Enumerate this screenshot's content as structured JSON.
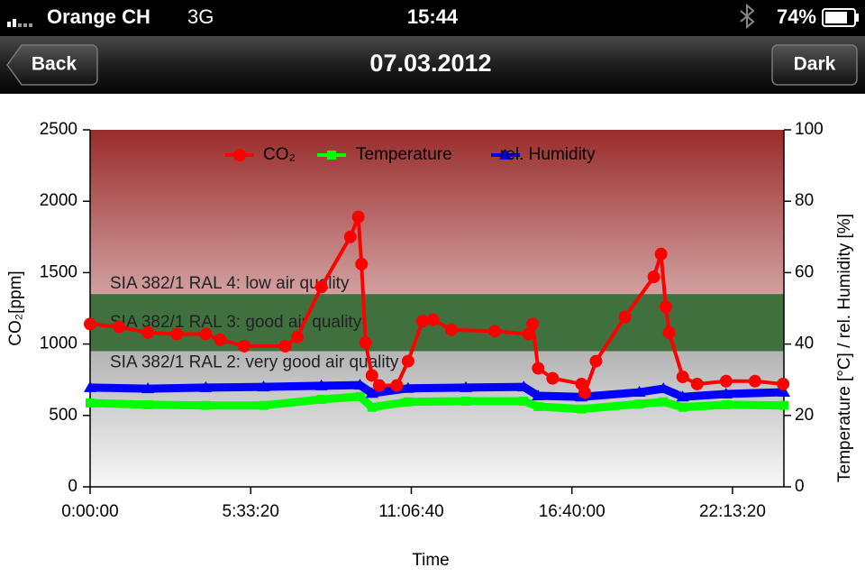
{
  "status_bar": {
    "carrier": "Orange CH",
    "network": "3G",
    "time": "15:44",
    "battery": "74%"
  },
  "nav_bar": {
    "back": "Back",
    "title": "07.03.2012",
    "right": "Dark"
  },
  "chart_data": {
    "type": "line",
    "x_label": "Time",
    "y_label": "CO₂[ppm]",
    "y2_label": "Temperature [°C] / rel. Humidity [%]",
    "xlim": [
      0,
      86400
    ],
    "xticks": [
      {
        "value": 0,
        "label": "0:00:00"
      },
      {
        "value": 20000,
        "label": "5:33:20"
      },
      {
        "value": 40000,
        "label": "11:06:40"
      },
      {
        "value": 60000,
        "label": "16:40:00"
      },
      {
        "value": 80000,
        "label": "22:13:20"
      }
    ],
    "ylim": [
      0,
      2500
    ],
    "yticks": [
      0,
      500,
      1000,
      1500,
      2000,
      2500
    ],
    "y2lim": [
      0,
      100
    ],
    "y2ticks": [
      0,
      20,
      40,
      60,
      80,
      100
    ],
    "bands": [
      {
        "label": "SIA 382/1 RAL 4: low air quality",
        "from": 1350,
        "to": 2500,
        "color": "#9a2c2c"
      },
      {
        "label": "SIA 382/1 RAL 3: good air quality",
        "from": 950,
        "to": 1350,
        "color": "#41703f"
      },
      {
        "label": "SIA 382/1 RAL 2: very good air quality",
        "from": 0,
        "to": 950,
        "color": "#b4b4b4"
      }
    ],
    "series": [
      {
        "name": "CO₂",
        "color": "#ff0000",
        "marker": "circle",
        "x": [
          0,
          3600,
          7200,
          10800,
          14400,
          16200,
          19200,
          24300,
          25800,
          28800,
          32400,
          33400,
          33800,
          34300,
          35100,
          36000,
          38200,
          39600,
          41400,
          42700,
          45000,
          50400,
          54600,
          55100,
          55800,
          57600,
          61200,
          61600,
          63000,
          66600,
          70200,
          71100,
          71700,
          72100,
          73800,
          75600,
          79200,
          82800,
          86300
        ],
        "values": [
          1140,
          1120,
          1080,
          1070,
          1070,
          1030,
          985,
          985,
          1050,
          1400,
          1750,
          1890,
          1560,
          1010,
          780,
          710,
          710,
          880,
          1160,
          1170,
          1100,
          1090,
          1070,
          1140,
          830,
          760,
          720,
          660,
          880,
          1190,
          1470,
          1630,
          1260,
          1080,
          770,
          720,
          740,
          740,
          720
        ]
      },
      {
        "name": "Temperature",
        "color": "#00ff00",
        "marker": "square",
        "axis": "y2",
        "x": [
          0,
          7200,
          14400,
          21600,
          28800,
          33600,
          35100,
          39600,
          46800,
          54000,
          55800,
          61200,
          68400,
          71400,
          73800,
          79200,
          86400
        ],
        "values": [
          23.5,
          23.0,
          22.8,
          22.8,
          24.5,
          25.3,
          22.3,
          23.8,
          24.0,
          24.0,
          22.5,
          21.8,
          23.2,
          23.8,
          22.3,
          23.0,
          22.8
        ]
      },
      {
        "name": "rel. Humidity",
        "color": "#0000ff",
        "marker": "triangle",
        "axis": "y2",
        "x": [
          0,
          7200,
          14400,
          21600,
          28800,
          33600,
          35100,
          39600,
          46800,
          54000,
          55800,
          61200,
          68400,
          71400,
          73800,
          79200,
          86400
        ],
        "values": [
          27.8,
          27.5,
          27.8,
          28.0,
          28.3,
          28.5,
          26.2,
          27.6,
          27.8,
          28.0,
          25.5,
          25.2,
          26.5,
          27.5,
          25.2,
          26.0,
          26.5
        ]
      }
    ]
  }
}
